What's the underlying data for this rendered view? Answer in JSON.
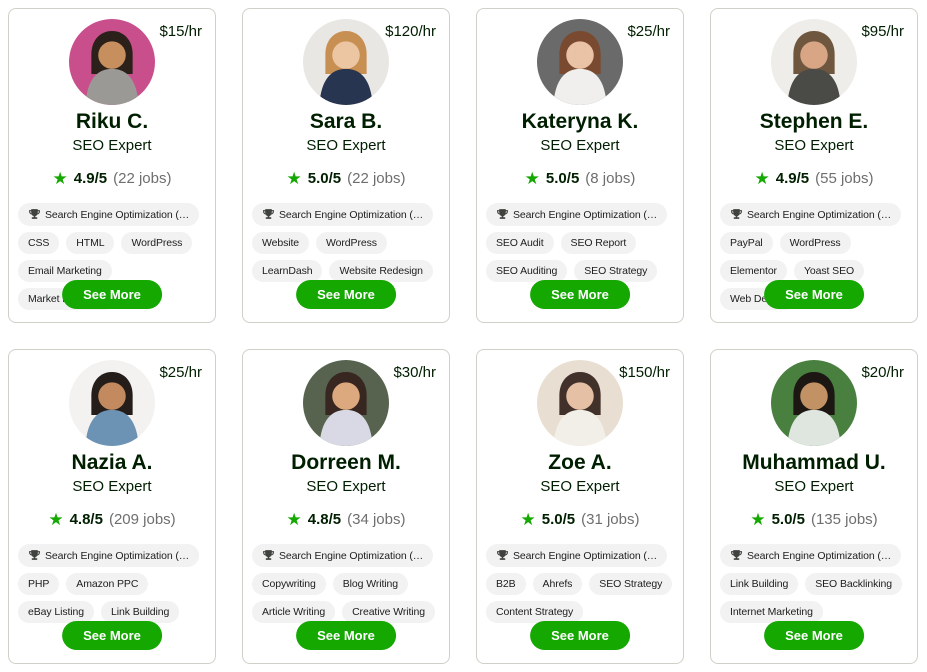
{
  "theme": {
    "accent_green": "#14a800",
    "card_border": "#d0d0c8",
    "tag_background": "#f2f2f2",
    "muted_text": "#6e6e6e",
    "text_color": "#001e00",
    "page_background": "#ffffff"
  },
  "icons": {
    "star": "★",
    "trophy": "🏆"
  },
  "card": {
    "see_more_label": "See More"
  },
  "freelancers": [
    {
      "name": "Riku C.",
      "title": "SEO Expert",
      "rate": "$15/hr",
      "rating": "4.9/5",
      "jobs": "(22 jobs)",
      "top_skill": "Search Engine Optimization (…",
      "skills": [
        "CSS",
        "HTML",
        "WordPress",
        "Email Marketing",
        "Market Research"
      ],
      "avatar": {
        "bg": "#c94f8c",
        "hair": "#2b211a",
        "skin": "#c78f5e",
        "shirt": "#9b9995"
      }
    },
    {
      "name": "Sara B.",
      "title": "SEO Expert",
      "rate": "$120/hr",
      "rating": "5.0/5",
      "jobs": "(22 jobs)",
      "top_skill": "Search Engine Optimization (…",
      "skills": [
        "Website",
        "WordPress",
        "LearnDash",
        "Website Redesign"
      ],
      "avatar": {
        "bg": "#e9e7e3",
        "hair": "#c78f52",
        "skin": "#ecc6a2",
        "shirt": "#273550"
      }
    },
    {
      "name": "Kateryna K.",
      "title": "SEO Expert",
      "rate": "$25/hr",
      "rating": "5.0/5",
      "jobs": "(8 jobs)",
      "top_skill": "Search Engine Optimization (…",
      "skills": [
        "SEO Audit",
        "SEO Report",
        "SEO Auditing",
        "SEO Strategy"
      ],
      "avatar": {
        "bg": "#6a6a6a",
        "hair": "#7a4a30",
        "skin": "#eac3a6",
        "shirt": "#f0efed"
      }
    },
    {
      "name": "Stephen E.",
      "title": "SEO Expert",
      "rate": "$95/hr",
      "rating": "4.9/5",
      "jobs": "(55 jobs)",
      "top_skill": "Search Engine Optimization (…",
      "skills": [
        "PayPal",
        "WordPress",
        "Elementor",
        "Yoast SEO",
        "Web Design"
      ],
      "avatar": {
        "bg": "#efede9",
        "hair": "#6e563f",
        "skin": "#d8a585",
        "shirt": "#4a4a46"
      }
    },
    {
      "name": "Nazia A.",
      "title": "SEO Expert",
      "rate": "$25/hr",
      "rating": "4.8/5",
      "jobs": "(209 jobs)",
      "top_skill": "Search Engine Optimization (…",
      "skills": [
        "PHP",
        "Amazon PPC",
        "eBay Listing",
        "Link Building"
      ],
      "avatar": {
        "bg": "#f4f2f0",
        "hair": "#241d19",
        "skin": "#c28a5e",
        "shirt": "#6c92b4"
      }
    },
    {
      "name": "Dorreen M.",
      "title": "SEO Expert",
      "rate": "$30/hr",
      "rating": "4.8/5",
      "jobs": "(34 jobs)",
      "top_skill": "Search Engine Optimization (…",
      "skills": [
        "Copywriting",
        "Blog Writing",
        "Article Writing",
        "Creative Writing"
      ],
      "avatar": {
        "bg": "#57634f",
        "hair": "#382620",
        "skin": "#dca87e",
        "shirt": "#d8d9e4"
      }
    },
    {
      "name": "Zoe A.",
      "title": "SEO Expert",
      "rate": "$150/hr",
      "rating": "5.0/5",
      "jobs": "(31 jobs)",
      "top_skill": "Search Engine Optimization (…",
      "skills": [
        "B2B",
        "Ahrefs",
        "SEO Strategy",
        "Content Strategy"
      ],
      "avatar": {
        "bg": "#e8dfd2",
        "hair": "#42302a",
        "skin": "#e5c0a4",
        "shirt": "#f1efe8"
      }
    },
    {
      "name": "Muhammad U.",
      "title": "SEO Expert",
      "rate": "$20/hr",
      "rating": "5.0/5",
      "jobs": "(135 jobs)",
      "top_skill": "Search Engine Optimization (…",
      "skills": [
        "Link Building",
        "SEO Backlinking",
        "Internet Marketing"
      ],
      "avatar": {
        "bg": "#49803f",
        "hair": "#1d1714",
        "skin": "#c29264",
        "shirt": "#dfe5df"
      }
    }
  ]
}
